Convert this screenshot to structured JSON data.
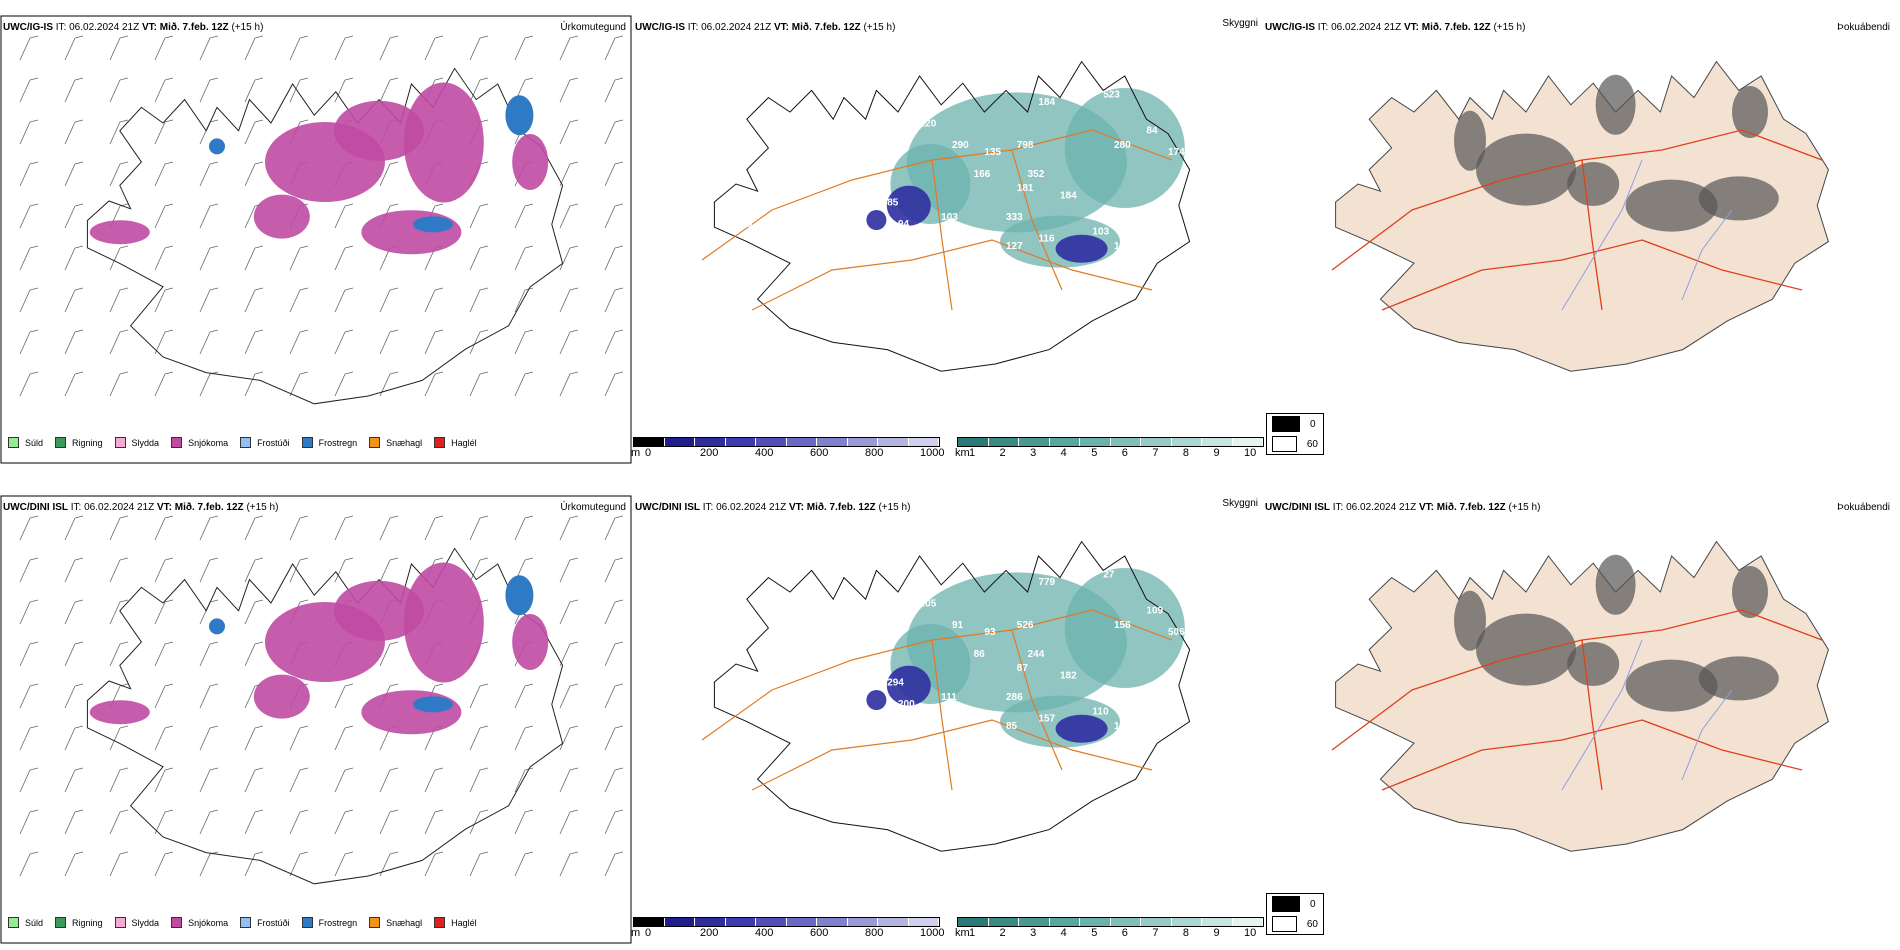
{
  "rows": [
    {
      "model": "UWC/IG-IS",
      "it_label": "IT:",
      "it_value": "06.02.2024 21Z",
      "vt_label": "VT:",
      "vt_value": "Mið. 7.feb. 12Z",
      "lead": "(+15 h)",
      "precip_title": "Úrkomutegund",
      "cloud_title": "Skyggni",
      "fog_title": "Þokuábendi",
      "cloud_labels": [
        "184",
        "523",
        "84",
        "280",
        "174",
        "160",
        "798",
        "135",
        "352",
        "120",
        "290",
        "166",
        "181",
        "184",
        "333",
        "85",
        "94",
        "103",
        "101",
        "127",
        "116",
        "103",
        "105",
        "115"
      ]
    },
    {
      "model": "UWC/DINI ISL",
      "it_label": "IT:",
      "it_value": "06.02.2024 21Z",
      "vt_label": "VT:",
      "vt_value": "Mið. 7.feb. 12Z",
      "lead": "(+15 h)",
      "precip_title": "Úrkomutegund",
      "cloud_title": "Skyggni",
      "fog_title": "Þokuábendi",
      "cloud_labels": [
        "779",
        "27",
        "109",
        "156",
        "506",
        "95",
        "526",
        "93",
        "244",
        "105",
        "91",
        "86",
        "87",
        "182",
        "286",
        "294",
        "200",
        "111",
        "86",
        "85",
        "157",
        "110",
        "156"
      ]
    }
  ],
  "precip_legend": [
    {
      "label": "Súld",
      "color": "#90ee90"
    },
    {
      "label": "Rigning",
      "color": "#3a9a5a"
    },
    {
      "label": "Slydda",
      "color": "#f5a9d6"
    },
    {
      "label": "Snjókoma",
      "color": "#c04aa3"
    },
    {
      "label": "Frostúði",
      "color": "#8fc1f0"
    },
    {
      "label": "Frostregn",
      "color": "#2e7ac4"
    },
    {
      "label": "Snæhagl",
      "color": "#f0941a"
    },
    {
      "label": "Haglél",
      "color": "#e0201c"
    }
  ],
  "ceiling_bar": {
    "unit": "m",
    "ticks": [
      "0",
      "200",
      "400",
      "600",
      "800",
      "1000"
    ],
    "colors": [
      "#000000",
      "#1e1e8c",
      "#2d2da0",
      "#3c3cb0",
      "#5050b8",
      "#6a6ac4",
      "#8080cc",
      "#9a9ad6",
      "#b4b4e0",
      "#d0d0ec"
    ]
  },
  "vis_bar": {
    "unit": "km",
    "ticks": [
      "1",
      "2",
      "3",
      "4",
      "5",
      "6",
      "7",
      "8",
      "9",
      "10"
    ],
    "colors": [
      "#2a7a78",
      "#3a8a86",
      "#4a9894",
      "#5aa6a0",
      "#6cb2ac",
      "#80beb8",
      "#96cac4",
      "#aed6d0",
      "#c8e4e0",
      "#e4f2f0"
    ]
  },
  "fog_legend": [
    {
      "label": "0",
      "color": "#000000"
    },
    {
      "label": "60",
      "color": "#ffffff"
    }
  ]
}
